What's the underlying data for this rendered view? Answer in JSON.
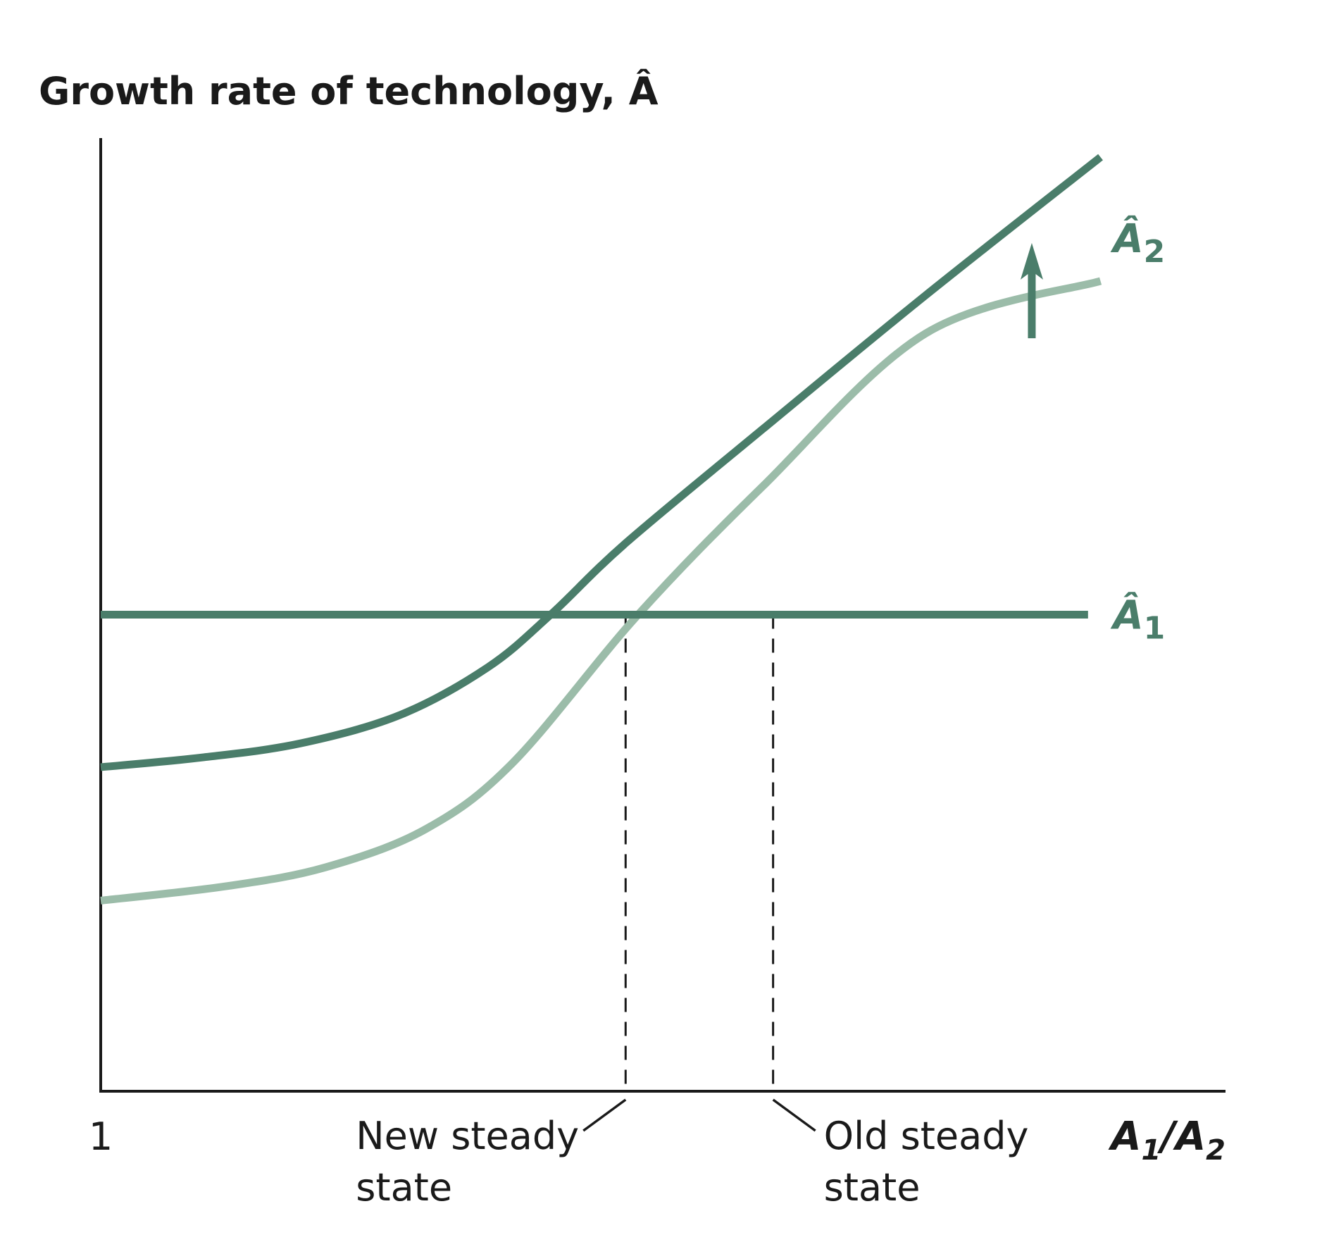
{
  "colors": {
    "dark_curve": "#4a7d6a",
    "light_curve": "#9bbca9",
    "axis": "#1a1a1a",
    "background": "#ffffff"
  },
  "chart_data": {
    "type": "line",
    "title": "",
    "ylabel": "Growth rate of technology, Â",
    "xlabel": {
      "base1": "A",
      "sub1": "1",
      "slash": "/",
      "base2": "A",
      "sub2": "2"
    },
    "x_tick_labels": [
      "1"
    ],
    "xlim": [
      1,
      10
    ],
    "ylim": [
      0,
      10
    ],
    "grid": false,
    "series": [
      {
        "name": "Â1",
        "label_base": "Â",
        "label_sub": "1",
        "color": "#4a7d6a",
        "x": [
          1,
          8.9
        ],
        "y": [
          5,
          5
        ]
      },
      {
        "name": "Â2",
        "label_base": "Â",
        "label_sub": "2",
        "color": "#4a7d6a",
        "x": [
          1,
          1.8,
          2.6,
          3.4,
          4.1,
          4.6,
          5.2,
          6.3,
          7.6,
          9.0
        ],
        "y": [
          3.4,
          3.5,
          3.65,
          3.95,
          4.45,
          5.0,
          5.75,
          6.95,
          8.35,
          9.8
        ]
      },
      {
        "name": "",
        "color": "#9bbca9",
        "x": [
          1,
          2.0,
          2.8,
          3.6,
          4.3,
          5.3,
          6.3,
          7.6,
          9.0
        ],
        "y": [
          2.0,
          2.15,
          2.35,
          2.75,
          3.45,
          5.0,
          6.35,
          7.95,
          8.5
        ]
      }
    ],
    "steady_states": [
      {
        "x": 5.2,
        "y": 5,
        "label_line1": "New steady",
        "label_line2": "state"
      },
      {
        "x": 6.38,
        "y": 5,
        "label_line1": "Old steady",
        "label_line2": "state"
      }
    ],
    "shift_arrow": {
      "x": 8.45,
      "y_from": 7.9,
      "y_to": 8.9,
      "direction": "up"
    }
  }
}
